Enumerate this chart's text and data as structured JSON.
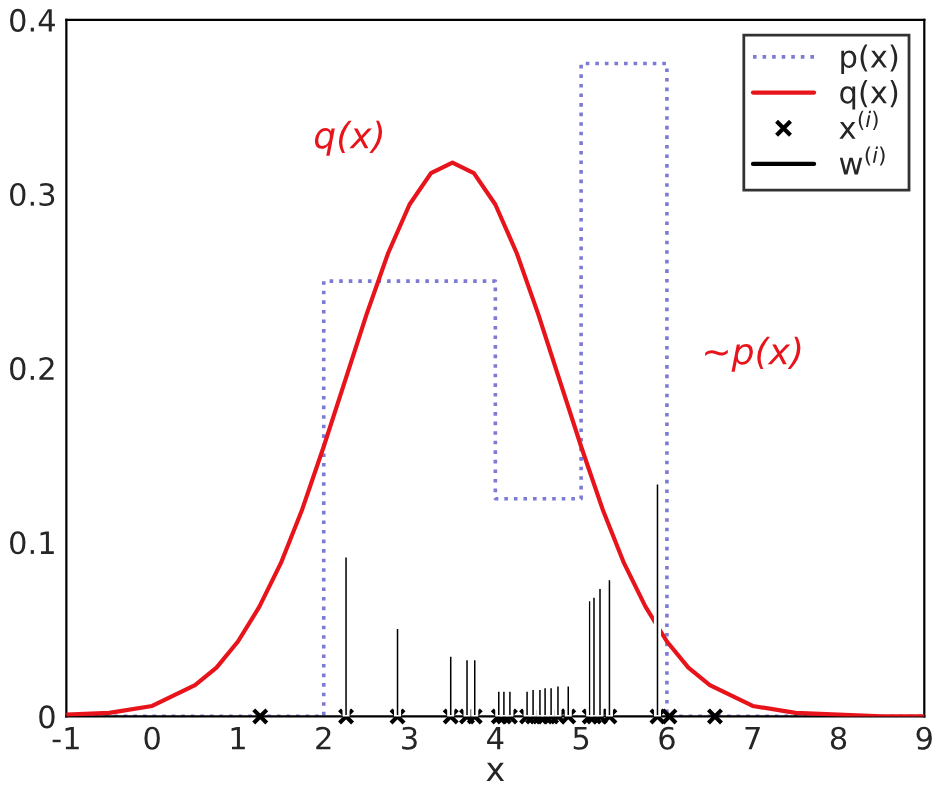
{
  "chart_data": {
    "type": "line",
    "xlabel": "x",
    "xlim": [
      -1,
      9
    ],
    "ylim": [
      0,
      0.4
    ],
    "xticks": [
      -1,
      0,
      1,
      2,
      3,
      4,
      5,
      6,
      7,
      8,
      9
    ],
    "yticks": [
      0,
      0.1,
      0.2,
      0.3,
      0.4
    ],
    "legend": "top right",
    "grid": false,
    "series": [
      {
        "name": "p(x)",
        "type": "step",
        "color": "#7b7bd6",
        "line_style": "dotted",
        "x": [
          -1,
          2,
          4,
          5,
          6,
          9
        ],
        "values": [
          0,
          0.25,
          0.125,
          0.375,
          0,
          0
        ]
      },
      {
        "name": "q(x)",
        "color": "#e8141c",
        "line_style": "solid",
        "x": [
          -1,
          -0.5,
          0,
          0.5,
          0.75,
          1,
          1.25,
          1.5,
          1.75,
          2,
          2.25,
          2.5,
          2.75,
          3,
          3.25,
          3.5,
          3.75,
          4,
          4.25,
          4.5,
          4.75,
          5,
          5.25,
          5.5,
          5.75,
          6,
          6.25,
          6.5,
          7,
          7.5,
          8,
          8.5,
          9
        ],
        "values": [
          0.001,
          0.002,
          0.006,
          0.018,
          0.028,
          0.043,
          0.063,
          0.088,
          0.119,
          0.155,
          0.193,
          0.231,
          0.266,
          0.294,
          0.312,
          0.318,
          0.312,
          0.294,
          0.266,
          0.231,
          0.193,
          0.155,
          0.119,
          0.088,
          0.063,
          0.043,
          0.028,
          0.018,
          0.006,
          0.002,
          0.001,
          0,
          0
        ]
      },
      {
        "name": "x$^{(i)}$",
        "type": "scatter",
        "marker": "cross",
        "color": "#000000",
        "x": [
          1.26,
          2.26,
          2.86,
          3.48,
          3.67,
          3.76,
          4.04,
          4.1,
          4.17,
          4.37,
          4.44,
          4.52,
          4.58,
          4.65,
          4.73,
          4.85,
          5.1,
          5.15,
          5.22,
          5.33,
          5.89,
          6.03,
          6.56
        ],
        "values": [
          0,
          0,
          0,
          0,
          0,
          0,
          0,
          0,
          0,
          0,
          0,
          0,
          0,
          0,
          0,
          0,
          0,
          0,
          0,
          0,
          0,
          0,
          0
        ]
      },
      {
        "name": "w$^{(i)}$",
        "type": "bar",
        "color": "#000000",
        "x": [
          2.26,
          2.86,
          3.48,
          3.67,
          3.76,
          4.04,
          4.1,
          4.17,
          4.37,
          4.44,
          4.52,
          4.58,
          4.65,
          4.73,
          4.85,
          5.1,
          5.15,
          5.22,
          5.33,
          5.89
        ],
        "values": [
          0.092,
          0.051,
          0.035,
          0.033,
          0.033,
          0.015,
          0.015,
          0.015,
          0.015,
          0.016,
          0.016,
          0.017,
          0.017,
          0.018,
          0.018,
          0.067,
          0.069,
          0.074,
          0.079,
          0.134
        ]
      }
    ],
    "annotations": [
      "q(x)",
      "~p(x)"
    ]
  }
}
